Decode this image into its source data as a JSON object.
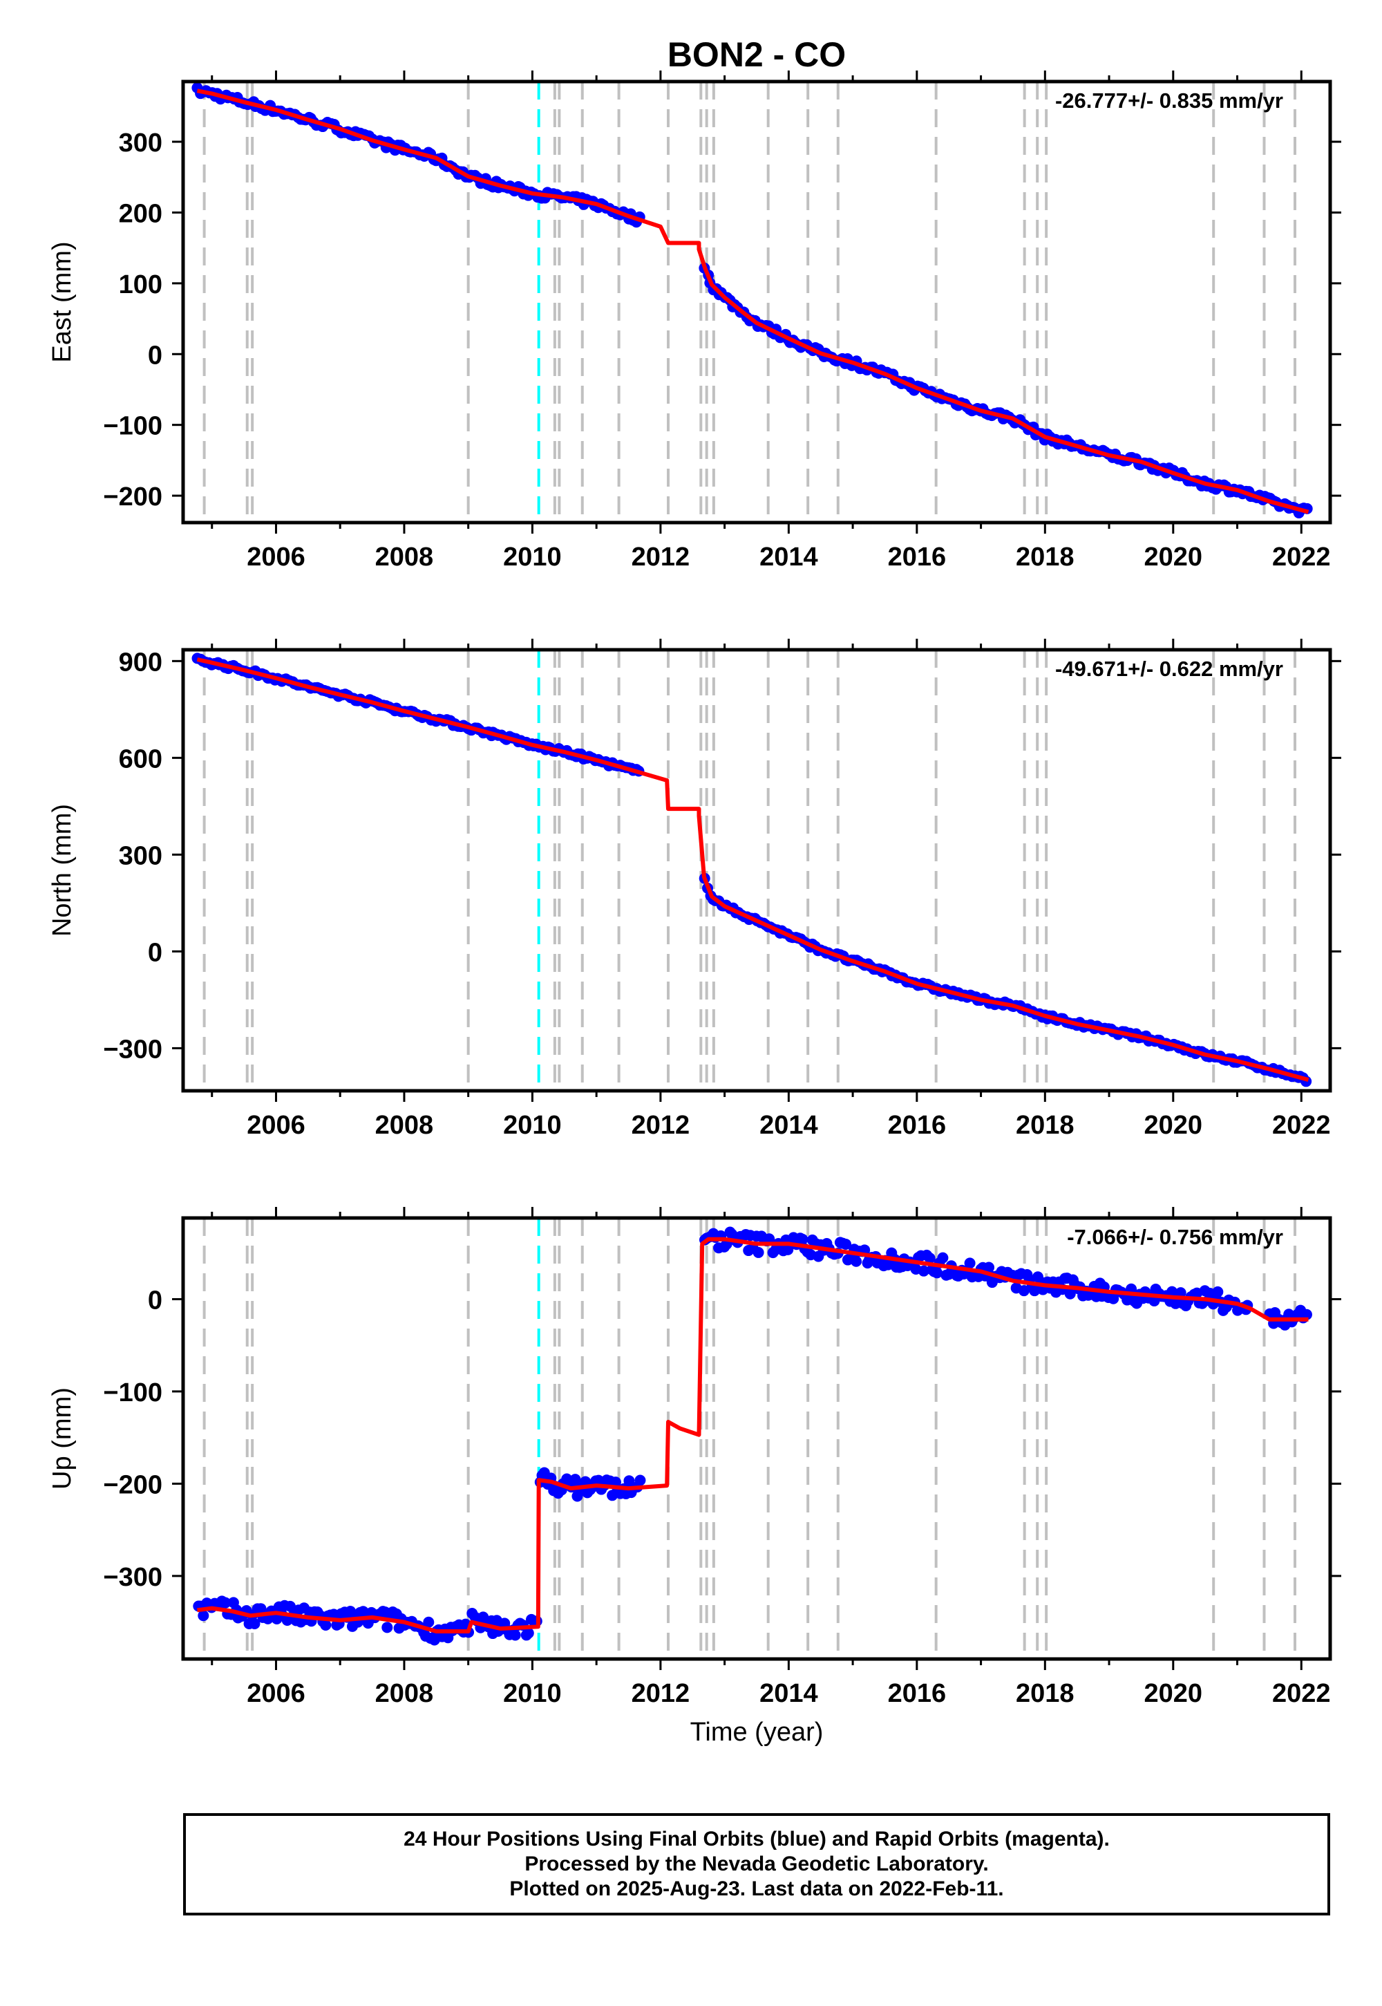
{
  "title": "BON2 - CO",
  "xlabel": "Time (year)",
  "colors": {
    "final_orbits": "#0000ff",
    "model": "#ff0000",
    "event_lines": "#c0c0c0",
    "highlight_line": "#00ffff",
    "frame": "#000000"
  },
  "footer": {
    "line1": "24 Hour Positions Using Final Orbits (blue) and Rapid Orbits (magenta).",
    "line2": "Processed by the Nevada Geodetic Laboratory.",
    "line3": "Plotted on 2025-Aug-23. Last data on 2022-Feb-11."
  },
  "chart_data": [
    {
      "type": "scatter",
      "ylabel": "East (mm)",
      "rate": "-26.777+/- 0.835 mm/yr",
      "xlim": [
        2004.55,
        2022.45
      ],
      "ylim": [
        -238,
        385
      ],
      "yticks": [
        300,
        200,
        100,
        0,
        -100,
        -200
      ],
      "ytick_labels": [
        "300",
        "200",
        "100",
        "0",
        "−100",
        "−200"
      ],
      "xticks": [
        2006,
        2008,
        2010,
        2012,
        2014,
        2016,
        2018,
        2020,
        2022
      ],
      "event_lines": [
        2004.88,
        2005.55,
        2005.63,
        2009.0,
        2010.35,
        2010.42,
        2010.78,
        2011.35,
        2012.12,
        2012.63,
        2012.72,
        2012.83,
        2013.68,
        2014.3,
        2014.77,
        2016.3,
        2017.68,
        2017.88,
        2018.02,
        2020.63,
        2021.42,
        2021.9
      ],
      "highlight_line": 2010.1,
      "model_series": {
        "name": "model",
        "x": [
          2004.77,
          2005.0,
          2005.5,
          2006.0,
          2006.5,
          2007.0,
          2007.5,
          2008.0,
          2008.5,
          2009.0,
          2009.5,
          2010.0,
          2010.5,
          2011.0,
          2011.5,
          2012.0,
          2012.12,
          2012.6,
          2012.6,
          2012.7,
          2012.8,
          2013.0,
          2013.3,
          2013.5,
          2014.0,
          2014.5,
          2015.0,
          2015.5,
          2016.0,
          2016.5,
          2017.0,
          2017.5,
          2018.0,
          2018.5,
          2019.0,
          2019.5,
          2020.0,
          2020.5,
          2021.0,
          2021.5,
          2022.11
        ],
        "y": [
          372,
          368,
          356,
          345,
          331,
          318,
          302,
          289,
          277,
          251,
          238,
          227,
          221,
          212,
          195,
          180,
          157,
          157,
          148,
          120,
          98,
          80,
          58,
          44,
          22,
          1,
          -12,
          -28,
          -48,
          -64,
          -80,
          -91,
          -117,
          -130,
          -143,
          -152,
          -168,
          -183,
          -192,
          -208,
          -223
        ]
      },
      "observed": {
        "name": "final",
        "segments": [
          [
            2004.77,
            2009.0
          ],
          [
            2009.0,
            2010.1
          ],
          [
            2010.1,
            2011.7
          ],
          [
            2012.68,
            2022.11
          ]
        ],
        "scatter_mm": 5,
        "points": 380
      }
    },
    {
      "type": "scatter",
      "ylabel": "North (mm)",
      "rate": "-49.671+/- 0.622 mm/yr",
      "xlim": [
        2004.55,
        2022.45
      ],
      "ylim": [
        -432,
        935
      ],
      "yticks": [
        900,
        600,
        300,
        0,
        -300
      ],
      "ytick_labels": [
        "900",
        "600",
        "300",
        "0",
        "−300"
      ],
      "xticks": [
        2006,
        2008,
        2010,
        2012,
        2014,
        2016,
        2018,
        2020,
        2022
      ],
      "event_lines": [
        2004.88,
        2005.55,
        2005.63,
        2009.0,
        2010.35,
        2010.42,
        2010.78,
        2011.35,
        2012.12,
        2012.63,
        2012.72,
        2012.83,
        2013.68,
        2014.3,
        2014.77,
        2016.3,
        2017.68,
        2017.88,
        2018.02,
        2020.63,
        2021.42,
        2021.9
      ],
      "highlight_line": 2010.1,
      "model_series": {
        "name": "model",
        "x": [
          2004.77,
          2005.0,
          2005.5,
          2006.0,
          2006.5,
          2007.0,
          2007.5,
          2008.0,
          2008.5,
          2009.0,
          2009.5,
          2010.0,
          2010.5,
          2011.0,
          2011.5,
          2012.1,
          2012.12,
          2012.6,
          2012.6,
          2012.68,
          2012.8,
          2013.0,
          2013.5,
          2014.0,
          2014.5,
          2015.0,
          2015.5,
          2016.0,
          2016.5,
          2017.0,
          2017.5,
          2018.0,
          2018.5,
          2019.0,
          2019.5,
          2020.0,
          2020.5,
          2021.0,
          2021.5,
          2022.11
        ],
        "y": [
          905,
          895,
          872,
          847,
          820,
          796,
          772,
          745,
          720,
          695,
          668,
          640,
          618,
          593,
          565,
          530,
          442,
          442,
          420,
          230,
          170,
          140,
          95,
          50,
          5,
          -30,
          -62,
          -100,
          -125,
          -150,
          -168,
          -200,
          -225,
          -245,
          -265,
          -290,
          -320,
          -340,
          -365,
          -398
        ]
      },
      "observed": {
        "name": "final",
        "segments": [
          [
            2004.77,
            2009.0
          ],
          [
            2009.0,
            2010.1
          ],
          [
            2010.1,
            2011.7
          ],
          [
            2012.68,
            2022.11
          ]
        ],
        "scatter_mm": 7,
        "points": 380
      }
    },
    {
      "type": "scatter",
      "ylabel": "Up (mm)",
      "rate": "-7.066+/- 0.756 mm/yr",
      "xlim": [
        2004.55,
        2022.45
      ],
      "ylim": [
        -390,
        88
      ],
      "yticks": [
        0,
        -100,
        -200,
        -300
      ],
      "ytick_labels": [
        "0",
        "−100",
        "−200",
        "−300"
      ],
      "xticks": [
        2006,
        2008,
        2010,
        2012,
        2014,
        2016,
        2018,
        2020,
        2022
      ],
      "event_lines": [
        2004.88,
        2005.55,
        2005.63,
        2009.0,
        2010.35,
        2010.42,
        2010.78,
        2011.35,
        2012.12,
        2012.63,
        2012.72,
        2012.83,
        2013.68,
        2014.3,
        2014.77,
        2016.3,
        2017.68,
        2017.88,
        2018.02,
        2020.63,
        2021.42,
        2021.9
      ],
      "highlight_line": 2010.1,
      "model_series": {
        "name": "model",
        "x": [
          2004.77,
          2005.0,
          2005.3,
          2005.6,
          2006.0,
          2006.5,
          2007.0,
          2007.5,
          2008.0,
          2008.5,
          2009.0,
          2009.05,
          2009.5,
          2010.09,
          2010.1,
          2010.3,
          2010.6,
          2011.0,
          2011.5,
          2012.1,
          2012.12,
          2012.3,
          2012.6,
          2012.65,
          2012.75,
          2013.0,
          2013.5,
          2014.0,
          2014.5,
          2015.0,
          2015.5,
          2016.0,
          2016.5,
          2017.0,
          2017.5,
          2018.0,
          2018.5,
          2019.0,
          2019.5,
          2020.0,
          2020.5,
          2021.0,
          2021.2,
          2021.5,
          2022.11
        ],
        "y": [
          -337,
          -335,
          -338,
          -343,
          -340,
          -345,
          -348,
          -345,
          -350,
          -360,
          -360,
          -350,
          -357,
          -355,
          -196,
          -198,
          -205,
          -202,
          -205,
          -202,
          -133,
          -140,
          -147,
          60,
          65,
          65,
          60,
          60,
          55,
          50,
          45,
          40,
          35,
          30,
          20,
          15,
          12,
          8,
          5,
          2,
          0,
          -5,
          -10,
          -22,
          -22
        ]
      },
      "observed": {
        "name": "final",
        "segments": [
          [
            2004.77,
            2009.0
          ],
          [
            2009.0,
            2010.1
          ],
          [
            2010.1,
            2011.7
          ],
          [
            2012.68,
            2021.2
          ],
          [
            2021.5,
            2022.11
          ]
        ],
        "scatter_mm": 10,
        "points": 380
      }
    }
  ]
}
